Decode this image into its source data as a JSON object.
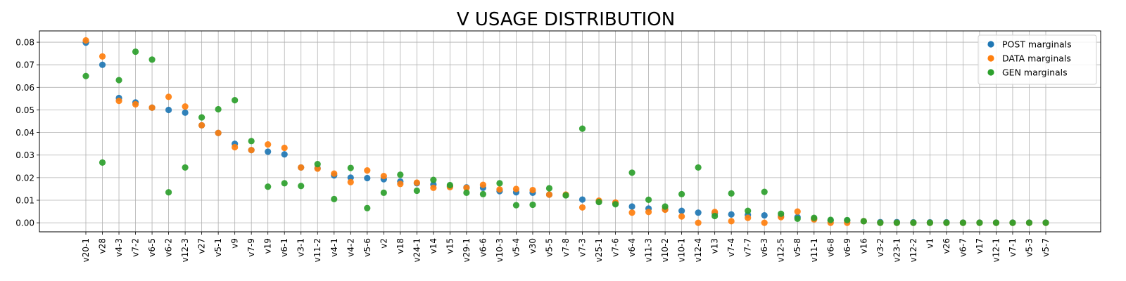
{
  "chart_data": {
    "type": "scatter",
    "title": "V USAGE DISTRIBUTION",
    "xlabel": "",
    "ylabel": "",
    "ylim": [
      -0.004,
      0.085
    ],
    "yticks": [
      "0.00",
      "0.01",
      "0.02",
      "0.03",
      "0.04",
      "0.05",
      "0.06",
      "0.07",
      "0.08"
    ],
    "grid": true,
    "legend_position": "top-right",
    "categories": [
      "v20-1",
      "v28",
      "v4-3",
      "v7-2",
      "v6-5",
      "v6-2",
      "v12-3",
      "v27",
      "v5-1",
      "v9",
      "v7-9",
      "v19",
      "v6-1",
      "v3-1",
      "v11-2",
      "v4-1",
      "v4-2",
      "v5-6",
      "v2",
      "v18",
      "v24-1",
      "v14",
      "v15",
      "v29-1",
      "v6-6",
      "v10-3",
      "v5-4",
      "v30",
      "v5-5",
      "v7-8",
      "v7-3",
      "v25-1",
      "v7-6",
      "v6-4",
      "v11-3",
      "v10-2",
      "v10-1",
      "v12-4",
      "v13",
      "v7-4",
      "v7-7",
      "v6-3",
      "v12-5",
      "v5-8",
      "v11-1",
      "v6-8",
      "v6-9",
      "v16",
      "v3-2",
      "v23-1",
      "v12-2",
      "v1",
      "v26",
      "v6-7",
      "v17",
      "v12-1",
      "v7-1",
      "v5-3",
      "v5-7"
    ],
    "series": [
      {
        "name": "POST marginals",
        "color": "#1f77b4",
        "values": [
          0.0798,
          0.07,
          0.0553,
          0.0533,
          0.051,
          0.05,
          0.0488,
          0.0432,
          0.0398,
          0.035,
          0.0322,
          0.0315,
          0.0303,
          0.0245,
          0.0242,
          0.021,
          0.02,
          0.0198,
          0.0193,
          0.0183,
          0.0175,
          0.017,
          0.0162,
          0.0157,
          0.0155,
          0.014,
          0.0135,
          0.0133,
          0.0125,
          0.0122,
          0.0103,
          0.0095,
          0.0087,
          0.0072,
          0.0063,
          0.006,
          0.0053,
          0.0045,
          0.0042,
          0.0037,
          0.0035,
          0.0033,
          0.003,
          0.0025,
          0.0018,
          0.001,
          0.001,
          0.0007,
          0.0003,
          0.0003,
          0.0002,
          0.0002,
          0.0002,
          0.0001,
          0.0001,
          0.0001,
          0.0001,
          0.0001,
          0.0001
        ]
      },
      {
        "name": "DATA marginals",
        "color": "#ff7f0e",
        "values": [
          0.0808,
          0.0737,
          0.054,
          0.0525,
          0.051,
          0.0558,
          0.0515,
          0.0432,
          0.0398,
          0.0335,
          0.0322,
          0.0347,
          0.0332,
          0.0245,
          0.024,
          0.0218,
          0.018,
          0.0232,
          0.0207,
          0.0172,
          0.0178,
          0.0155,
          0.0158,
          0.0155,
          0.0168,
          0.0148,
          0.015,
          0.0145,
          0.0125,
          0.0125,
          0.0068,
          0.0098,
          0.009,
          0.0045,
          0.0048,
          0.0058,
          0.0028,
          0.0,
          0.0048,
          0.0007,
          0.0022,
          0.0,
          0.0025,
          0.005,
          0.0015,
          0.0,
          0.0,
          0.0007,
          0.0,
          0.0,
          0.0,
          0.0,
          0.0,
          0.0,
          0.0,
          0.0,
          0.0,
          0.0,
          0.0
        ]
      },
      {
        "name": "GEN marginals",
        "color": "#2ca02c",
        "values": [
          0.065,
          0.0267,
          0.0632,
          0.0758,
          0.0723,
          0.0135,
          0.0245,
          0.0467,
          0.0503,
          0.0543,
          0.0362,
          0.016,
          0.0175,
          0.0163,
          0.026,
          0.0105,
          0.0243,
          0.0065,
          0.0133,
          0.0213,
          0.0142,
          0.019,
          0.0167,
          0.0133,
          0.0127,
          0.0175,
          0.0078,
          0.008,
          0.0153,
          0.0122,
          0.0417,
          0.0092,
          0.0082,
          0.0222,
          0.0102,
          0.0072,
          0.0127,
          0.0245,
          0.003,
          0.013,
          0.0053,
          0.0137,
          0.004,
          0.0018,
          0.0022,
          0.0013,
          0.0012,
          0.0007,
          0.0,
          0.0,
          0.0,
          0.0,
          0.0,
          0.0,
          0.0,
          0.0,
          0.0,
          0.0,
          0.0
        ]
      }
    ]
  }
}
